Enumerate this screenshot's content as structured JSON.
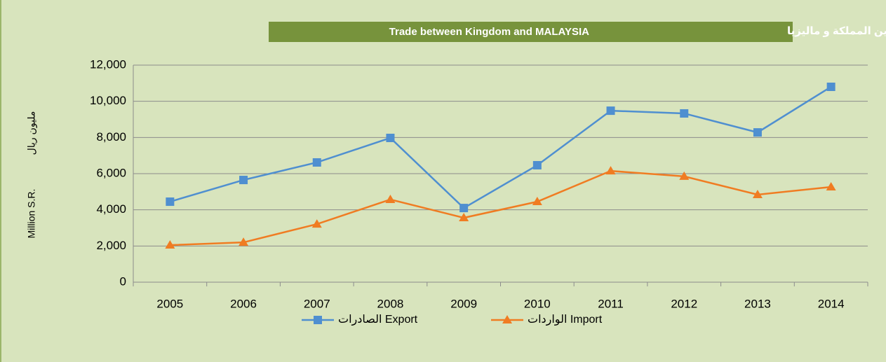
{
  "chart_data": {
    "type": "line",
    "title": "Trade between Kingdom and MALAYSIA",
    "title_ar": "التبادل التجاري بين المملكة و ماليزيا",
    "ylabel": "Million S.R.",
    "ylabel_ar": "مليون ريال",
    "categories": [
      "2005",
      "2006",
      "2007",
      "2008",
      "2009",
      "2010",
      "2011",
      "2012",
      "2013",
      "2014"
    ],
    "series": [
      {
        "name": "الصادرات Export",
        "color": "#4f8fd0",
        "marker": "square",
        "values": [
          4450,
          5650,
          6620,
          7975,
          4100,
          6465,
          9480,
          9330,
          8280,
          10800
        ]
      },
      {
        "name": "الواردات Import",
        "color": "#f07c22",
        "marker": "triangle",
        "values": [
          2050,
          2200,
          3210,
          4570,
          3560,
          4450,
          6150,
          5850,
          4840,
          5265
        ]
      }
    ],
    "ylim": [
      0,
      12000
    ],
    "yticks": [
      0,
      {
        "value": 2000,
        "label": "2,000"
      },
      {
        "value": 4000,
        "label": "4,000"
      },
      {
        "value": 6000,
        "label": "6,000"
      },
      {
        "value": 8000,
        "label": "8,000"
      },
      {
        "value": 10000,
        "label": "10,000"
      },
      {
        "value": 12000,
        "label": "12,000"
      }
    ],
    "grid": true,
    "legend": "bottom"
  }
}
